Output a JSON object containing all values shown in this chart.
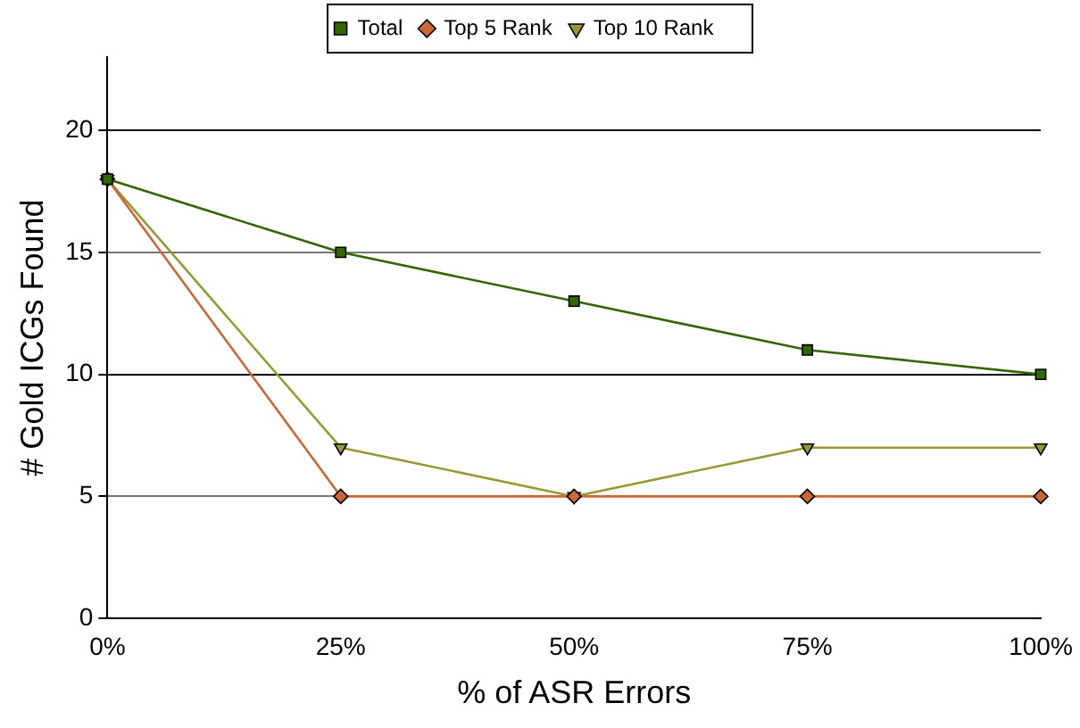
{
  "chart_data": {
    "type": "line",
    "xlabel": "% of ASR Errors",
    "ylabel": "# Gold ICGs Found",
    "categories": [
      "0%",
      "25%",
      "50%",
      "75%",
      "100%"
    ],
    "series": [
      {
        "name": "Total",
        "color": "#336600",
        "marker": "square",
        "values": [
          18,
          15,
          13,
          11,
          10
        ]
      },
      {
        "name": "Top 5 Rank",
        "color": "#cc6633",
        "marker": "diamond",
        "values": [
          18,
          5,
          5,
          5,
          5
        ]
      },
      {
        "name": "Top 10 Rank",
        "color": "#999933",
        "marker": "triangle",
        "values": [
          18,
          7,
          5,
          7,
          7
        ]
      }
    ],
    "ylim": [
      0,
      23
    ],
    "yticks": [
      0,
      5,
      10,
      15,
      20
    ],
    "grid": "y",
    "legend": "top"
  }
}
